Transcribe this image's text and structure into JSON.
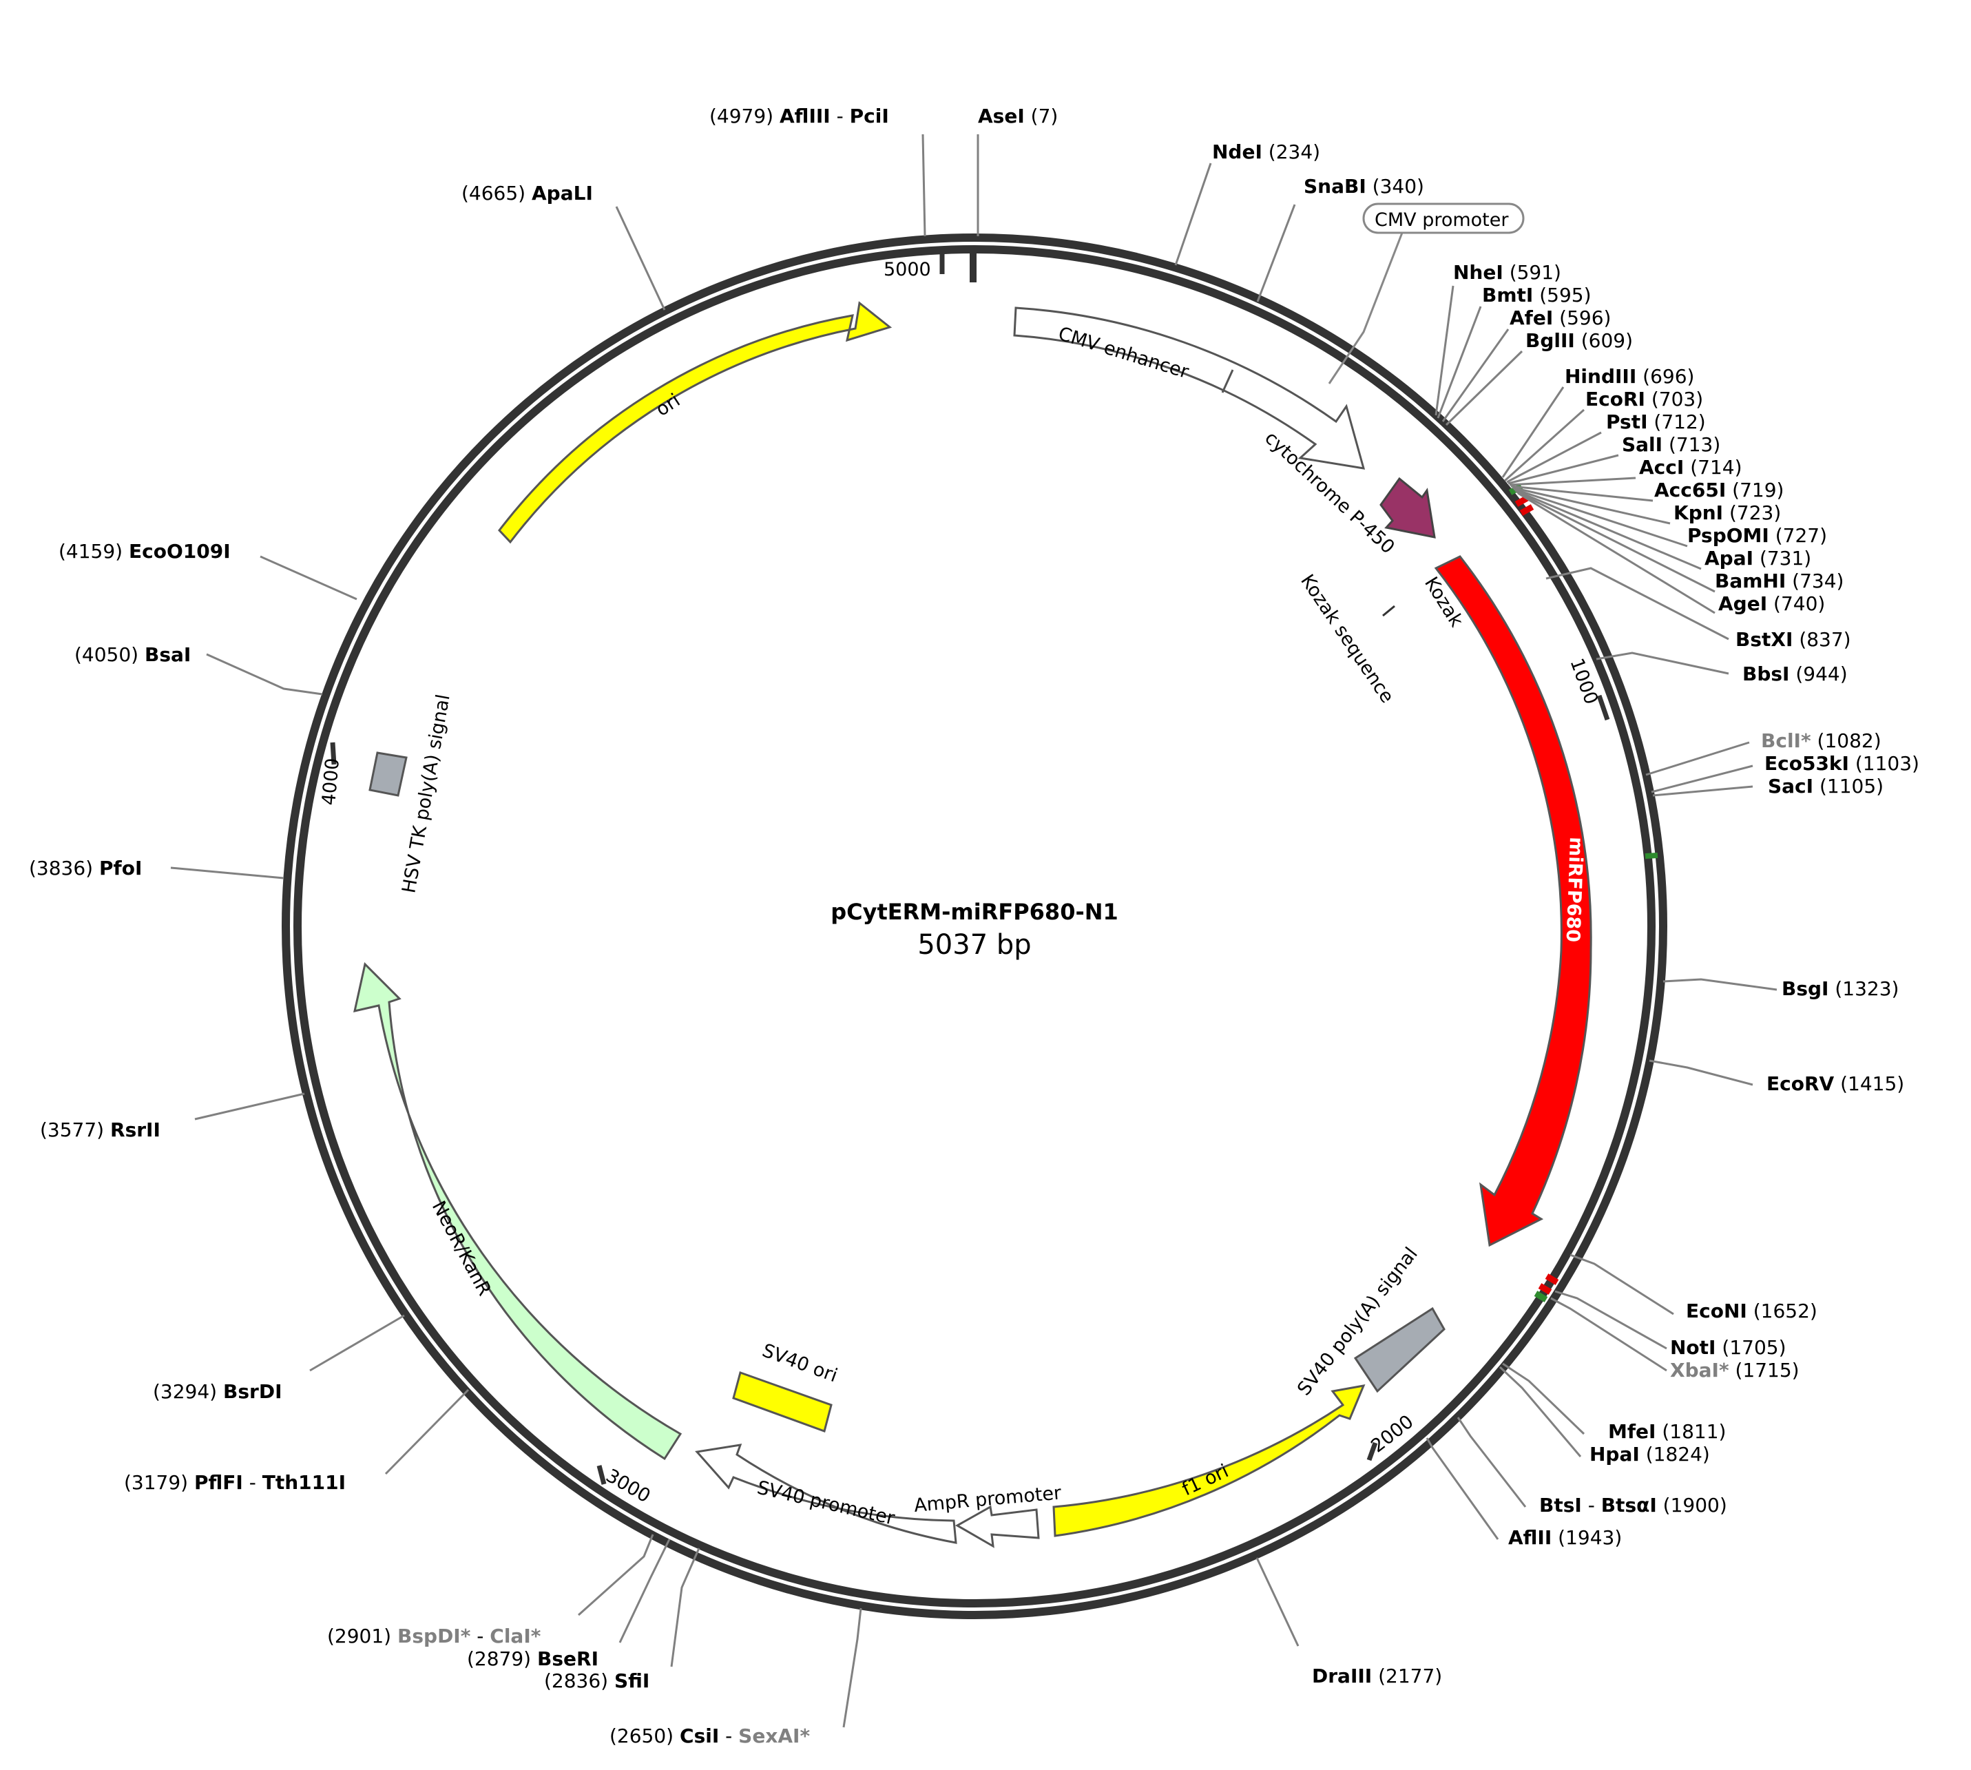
{
  "plasmid": {
    "name": "pCytERM-miRFP680-N1",
    "size": "5037 bp",
    "length": 5037
  },
  "ticks": [
    {
      "label": "1000",
      "pos": 1000
    },
    {
      "label": "2000",
      "pos": 2000
    },
    {
      "label": "3000",
      "pos": 3000
    },
    {
      "label": "4000",
      "pos": 4000
    },
    {
      "label": "5000",
      "pos": 5000
    }
  ],
  "features": [
    {
      "name": "CMV enhancer",
      "start": 250,
      "end": 630,
      "color": "#ffffff"
    },
    {
      "name": "cytochrome P-450",
      "start": 660,
      "end": 700,
      "color": "#993366"
    },
    {
      "name": "miRFP680",
      "start": 745,
      "end": 1640,
      "color": "#ff0000"
    },
    {
      "name": "SV40 poly(A) signal",
      "start": 1790,
      "end": 1910,
      "color": "#a6acb3"
    },
    {
      "name": "f1 ori",
      "start": 1960,
      "end": 2400,
      "color": "#ffff00"
    },
    {
      "name": "AmpR promoter",
      "start": 2400,
      "end": 2500,
      "color": "#ffffff"
    },
    {
      "name": "SV40 promoter",
      "start": 2510,
      "end": 2840,
      "color": "#ffffff"
    },
    {
      "name": "SV40 ori",
      "start": 2620,
      "end": 2750,
      "color": "#ffff00"
    },
    {
      "name": "NeoR/KanR",
      "start": 2880,
      "end": 3680,
      "color": "#ccffcc"
    },
    {
      "name": "HSV TK poly(A) signal",
      "start": 4020,
      "end": 4070,
      "color": "#a6acb3"
    },
    {
      "name": "ori",
      "start": 4220,
      "end": 4800,
      "color": "#ffff00"
    }
  ],
  "feature_labels": {
    "cmv_promoter": "CMV promoter",
    "kozak": "Kozak",
    "kozak_sequence": "Kozak sequence"
  },
  "sites": [
    {
      "pos": "(4979)",
      "name": "AflIII",
      "name2": "PciI"
    },
    {
      "pos": "(7)",
      "name": "AseI"
    },
    {
      "pos": "(234)",
      "name": "NdeI"
    },
    {
      "pos": "(340)",
      "name": "SnaBI"
    },
    {
      "pos": "(4665)",
      "name": "ApaLI"
    },
    {
      "pos": "(591)",
      "name": "NheI"
    },
    {
      "pos": "(595)",
      "name": "BmtI"
    },
    {
      "pos": "(596)",
      "name": "AfeI"
    },
    {
      "pos": "(609)",
      "name": "BglII"
    },
    {
      "pos": "(696)",
      "name": "HindIII"
    },
    {
      "pos": "(703)",
      "name": "EcoRI"
    },
    {
      "pos": "(712)",
      "name": "PstI"
    },
    {
      "pos": "(713)",
      "name": "SalI"
    },
    {
      "pos": "(714)",
      "name": "AccI"
    },
    {
      "pos": "(719)",
      "name": "Acc65I"
    },
    {
      "pos": "(723)",
      "name": "KpnI"
    },
    {
      "pos": "(727)",
      "name": "PspOMI"
    },
    {
      "pos": "(731)",
      "name": "ApaI"
    },
    {
      "pos": "(734)",
      "name": "BamHI"
    },
    {
      "pos": "(740)",
      "name": "AgeI"
    },
    {
      "pos": "(837)",
      "name": "BstXI"
    },
    {
      "pos": "(944)",
      "name": "BbsI"
    },
    {
      "pos": "(1082)",
      "name": "BclI*"
    },
    {
      "pos": "(1103)",
      "name": "Eco53kI"
    },
    {
      "pos": "(1105)",
      "name": "SacI"
    },
    {
      "pos": "(1323)",
      "name": "BsgI"
    },
    {
      "pos": "(1415)",
      "name": "EcoRV"
    },
    {
      "pos": "(1652)",
      "name": "EcoNI"
    },
    {
      "pos": "(1705)",
      "name": "NotI"
    },
    {
      "pos": "(1715)",
      "name": "XbaI*"
    },
    {
      "pos": "(1811)",
      "name": "MfeI"
    },
    {
      "pos": "(1824)",
      "name": "HpaI"
    },
    {
      "pos": "(1900)",
      "name": "BtsI",
      "name2": "BtsαI"
    },
    {
      "pos": "(1943)",
      "name": "AflII"
    },
    {
      "pos": "(2177)",
      "name": "DraIII"
    },
    {
      "pos": "(2650)",
      "name": "CsiI",
      "name2": "SexAI*"
    },
    {
      "pos": "(2836)",
      "name": "SfiI"
    },
    {
      "pos": "(2879)",
      "name": "BseRI"
    },
    {
      "pos": "(2901)",
      "name": "BspDI*",
      "name2": "ClaI*"
    },
    {
      "pos": "(3179)",
      "name": "PflFI",
      "name2": "Tth111I"
    },
    {
      "pos": "(3294)",
      "name": "BsrDI"
    },
    {
      "pos": "(3577)",
      "name": "RsrII"
    },
    {
      "pos": "(3836)",
      "name": "PfoI"
    },
    {
      "pos": "(4050)",
      "name": "BsaI"
    },
    {
      "pos": "(4159)",
      "name": "EcoO109I"
    }
  ]
}
